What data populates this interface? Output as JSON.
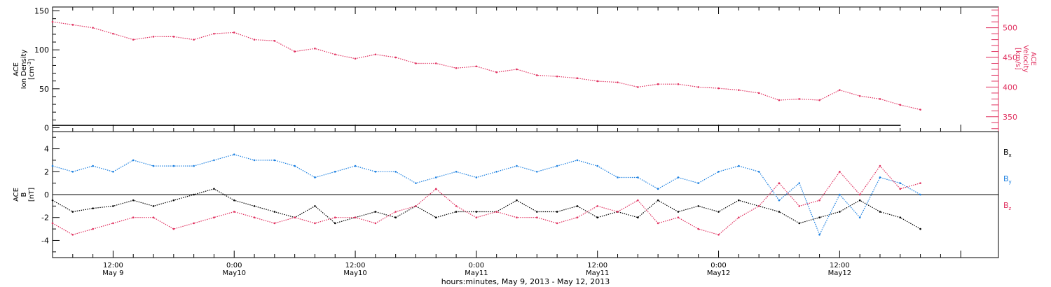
{
  "chart_data": [
    {
      "type": "scatter",
      "panel": "top",
      "ylabel_lines": [
        "ACE",
        "Ion Density",
        "[cm"
      ],
      "ylabel_superscript": "-3",
      "ylabel_close": "]",
      "yticks": [
        0,
        50,
        100,
        150
      ],
      "ylim": [
        -5,
        155
      ],
      "y2label_lines": [
        "ACE",
        "Velocity",
        "[km/s]"
      ],
      "y2ticks": [
        350,
        400,
        450,
        500
      ],
      "y2lim": [
        325,
        535
      ],
      "series": [
        {
          "axis": "left",
          "color": "#000000",
          "points": [
            [
              0,
              3
            ],
            [
              6,
              3
            ],
            [
              12,
              3
            ],
            [
              18,
              3
            ],
            [
              24,
              3
            ],
            [
              30,
              3
            ],
            [
              36,
              3
            ],
            [
              42,
              3
            ],
            [
              48,
              3
            ],
            [
              54,
              3
            ],
            [
              60,
              3
            ],
            [
              66,
              3
            ],
            [
              72,
              3
            ],
            [
              78,
              3
            ],
            [
              84,
              3
            ]
          ]
        },
        {
          "axis": "right",
          "color": "#e0305f",
          "points": [
            [
              0,
              510
            ],
            [
              2,
              505
            ],
            [
              4,
              500
            ],
            [
              6,
              490
            ],
            [
              8,
              480
            ],
            [
              10,
              485
            ],
            [
              12,
              485
            ],
            [
              14,
              480
            ],
            [
              16,
              490
            ],
            [
              18,
              492
            ],
            [
              20,
              480
            ],
            [
              22,
              478
            ],
            [
              24,
              460
            ],
            [
              26,
              465
            ],
            [
              28,
              455
            ],
            [
              30,
              448
            ],
            [
              32,
              455
            ],
            [
              34,
              450
            ],
            [
              36,
              440
            ],
            [
              38,
              440
            ],
            [
              40,
              432
            ],
            [
              42,
              435
            ],
            [
              44,
              425
            ],
            [
              46,
              430
            ],
            [
              48,
              420
            ],
            [
              50,
              418
            ],
            [
              52,
              415
            ],
            [
              54,
              410
            ],
            [
              56,
              408
            ],
            [
              58,
              400
            ],
            [
              60,
              405
            ],
            [
              62,
              405
            ],
            [
              64,
              400
            ],
            [
              66,
              398
            ],
            [
              68,
              395
            ],
            [
              70,
              390
            ],
            [
              72,
              378
            ],
            [
              74,
              380
            ],
            [
              76,
              378
            ],
            [
              78,
              395
            ],
            [
              80,
              385
            ],
            [
              82,
              380
            ],
            [
              84,
              370
            ],
            [
              86,
              362
            ]
          ]
        }
      ]
    },
    {
      "type": "scatter",
      "panel": "bottom",
      "ylabel_lines": [
        "ACE",
        "B",
        "[nT]"
      ],
      "yticks": [
        -4,
        -2,
        0,
        2,
        4
      ],
      "ylim": [
        -5.5,
        5.5
      ],
      "legend": [
        {
          "label": "B",
          "sub": "x",
          "color": "#000000"
        },
        {
          "label": "B",
          "sub": "y",
          "color": "#1a7fe0"
        },
        {
          "label": "B",
          "sub": "z",
          "color": "#e0305f"
        }
      ],
      "series": [
        {
          "name": "Bx",
          "color": "#000000",
          "points": [
            [
              0,
              -0.5
            ],
            [
              2,
              -1.5
            ],
            [
              4,
              -1.2
            ],
            [
              6,
              -1
            ],
            [
              8,
              -0.5
            ],
            [
              10,
              -1
            ],
            [
              12,
              -0.5
            ],
            [
              14,
              0
            ],
            [
              16,
              0.5
            ],
            [
              18,
              -0.5
            ],
            [
              20,
              -1
            ],
            [
              22,
              -1.5
            ],
            [
              24,
              -2
            ],
            [
              26,
              -1
            ],
            [
              28,
              -2.5
            ],
            [
              30,
              -2
            ],
            [
              32,
              -1.5
            ],
            [
              34,
              -2
            ],
            [
              36,
              -1
            ],
            [
              38,
              -2
            ],
            [
              40,
              -1.5
            ],
            [
              42,
              -1.5
            ],
            [
              44,
              -1.5
            ],
            [
              46,
              -0.5
            ],
            [
              48,
              -1.5
            ],
            [
              50,
              -1.5
            ],
            [
              52,
              -1
            ],
            [
              54,
              -2
            ],
            [
              56,
              -1.5
            ],
            [
              58,
              -2
            ],
            [
              60,
              -0.5
            ],
            [
              62,
              -1.5
            ],
            [
              64,
              -1
            ],
            [
              66,
              -1.5
            ],
            [
              68,
              -0.5
            ],
            [
              70,
              -1
            ],
            [
              72,
              -1.5
            ],
            [
              74,
              -2.5
            ],
            [
              76,
              -2
            ],
            [
              78,
              -1.5
            ],
            [
              80,
              -0.5
            ],
            [
              82,
              -1.5
            ],
            [
              84,
              -2
            ],
            [
              86,
              -3
            ]
          ]
        },
        {
          "name": "By",
          "color": "#1a7fe0",
          "points": [
            [
              0,
              2.5
            ],
            [
              2,
              2
            ],
            [
              4,
              2.5
            ],
            [
              6,
              2
            ],
            [
              8,
              3
            ],
            [
              10,
              2.5
            ],
            [
              12,
              2.5
            ],
            [
              14,
              2.5
            ],
            [
              16,
              3
            ],
            [
              18,
              3.5
            ],
            [
              20,
              3
            ],
            [
              22,
              3
            ],
            [
              24,
              2.5
            ],
            [
              26,
              1.5
            ],
            [
              28,
              2
            ],
            [
              30,
              2.5
            ],
            [
              32,
              2
            ],
            [
              34,
              2
            ],
            [
              36,
              1
            ],
            [
              38,
              1.5
            ],
            [
              40,
              2
            ],
            [
              42,
              1.5
            ],
            [
              44,
              2
            ],
            [
              46,
              2.5
            ],
            [
              48,
              2
            ],
            [
              50,
              2.5
            ],
            [
              52,
              3
            ],
            [
              54,
              2.5
            ],
            [
              56,
              1.5
            ],
            [
              58,
              1.5
            ],
            [
              60,
              0.5
            ],
            [
              62,
              1.5
            ],
            [
              64,
              1
            ],
            [
              66,
              2
            ],
            [
              68,
              2.5
            ],
            [
              70,
              2
            ],
            [
              72,
              -0.5
            ],
            [
              74,
              1
            ],
            [
              76,
              -3.5
            ],
            [
              78,
              0
            ],
            [
              80,
              -2
            ],
            [
              82,
              1.5
            ],
            [
              84,
              1
            ],
            [
              86,
              0
            ]
          ]
        },
        {
          "name": "Bz",
          "color": "#e0305f",
          "points": [
            [
              0,
              -2.5
            ],
            [
              2,
              -3.5
            ],
            [
              4,
              -3
            ],
            [
              6,
              -2.5
            ],
            [
              8,
              -2
            ],
            [
              10,
              -2
            ],
            [
              12,
              -3
            ],
            [
              14,
              -2.5
            ],
            [
              16,
              -2
            ],
            [
              18,
              -1.5
            ],
            [
              20,
              -2
            ],
            [
              22,
              -2.5
            ],
            [
              24,
              -2
            ],
            [
              26,
              -2.5
            ],
            [
              28,
              -2
            ],
            [
              30,
              -2
            ],
            [
              32,
              -2.5
            ],
            [
              34,
              -1.5
            ],
            [
              36,
              -1
            ],
            [
              38,
              0.5
            ],
            [
              40,
              -1
            ],
            [
              42,
              -2
            ],
            [
              44,
              -1.5
            ],
            [
              46,
              -2
            ],
            [
              48,
              -2
            ],
            [
              50,
              -2.5
            ],
            [
              52,
              -2
            ],
            [
              54,
              -1
            ],
            [
              56,
              -1.5
            ],
            [
              58,
              -0.5
            ],
            [
              60,
              -2.5
            ],
            [
              62,
              -2
            ],
            [
              64,
              -3
            ],
            [
              66,
              -3.5
            ],
            [
              68,
              -2
            ],
            [
              70,
              -1
            ],
            [
              72,
              1
            ],
            [
              74,
              -1
            ],
            [
              76,
              -0.5
            ],
            [
              78,
              2
            ],
            [
              80,
              0
            ],
            [
              82,
              2.5
            ],
            [
              84,
              0.5
            ],
            [
              86,
              1
            ]
          ]
        }
      ]
    }
  ],
  "x_axis": {
    "ticks": [
      {
        "hour": 6,
        "time": "12:00",
        "date": "May 9"
      },
      {
        "hour": 18,
        "time": "0:00",
        "date": "May10"
      },
      {
        "hour": 30,
        "time": "12:00",
        "date": "May10"
      },
      {
        "hour": 42,
        "time": "0:00",
        "date": "May11"
      },
      {
        "hour": 54,
        "time": "12:00",
        "date": "May11"
      },
      {
        "hour": 66,
        "time": "0:00",
        "date": "May12"
      },
      {
        "hour": 78,
        "time": "12:00",
        "date": "May12"
      }
    ],
    "xlim": [
      0,
      96
    ],
    "label": "hours:minutes, May  9, 2013 - May 12, 2013"
  }
}
